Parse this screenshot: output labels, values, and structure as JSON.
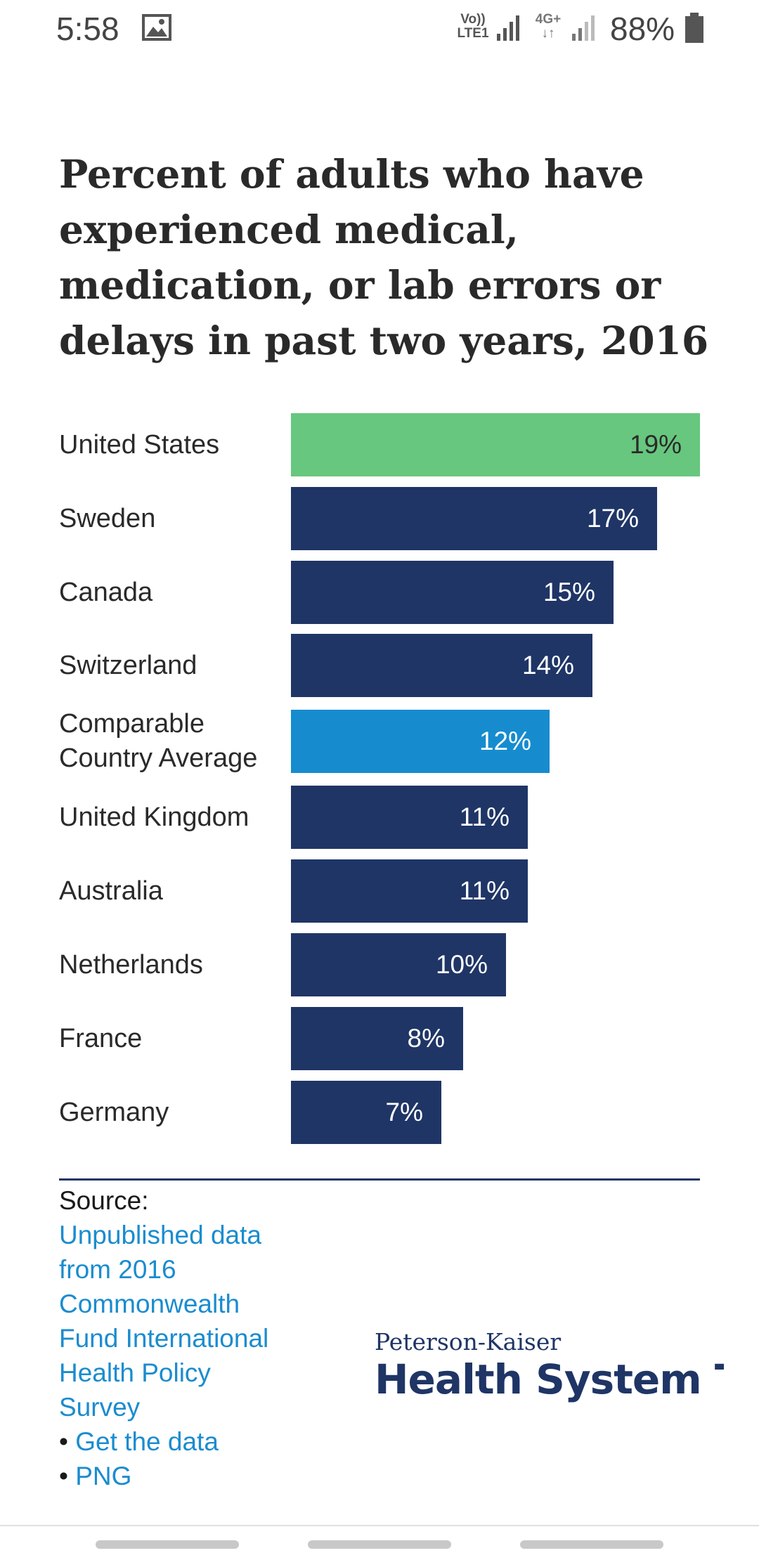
{
  "status_bar": {
    "time": "5:58",
    "volte_line1": "Vo))",
    "volte_line2": "LTE1",
    "network_line1": "4G+",
    "network_line2": "↓↑",
    "battery": "88%"
  },
  "chart_data": {
    "type": "bar",
    "title": "Percent of adults who have experienced medical, medication, or lab errors or delays in past two years, 2016",
    "categories": [
      "United States",
      "Sweden",
      "Canada",
      "Switzerland",
      "Comparable Country Average",
      "United Kingdom",
      "Australia",
      "Netherlands",
      "France",
      "Germany"
    ],
    "values": [
      19,
      17,
      15,
      14,
      12,
      11,
      11,
      10,
      8,
      7
    ],
    "value_labels": [
      "19%",
      "17%",
      "15%",
      "14%",
      "12%",
      "11%",
      "11%",
      "10%",
      "8%",
      "7%"
    ],
    "xlim": [
      0,
      19
    ],
    "colors": {
      "highlight": "#67c77e",
      "average": "#168ccf",
      "default": "#1f3566"
    },
    "highlight_index": 0,
    "average_index": 4
  },
  "source": {
    "label": "Source:",
    "link_text": "Unpublished data from 2016 Commonwealth Fund International Health Policy Survey",
    "links": [
      {
        "bullet": "•",
        "text": "Get the data"
      },
      {
        "bullet": "•",
        "text": "PNG"
      }
    ]
  },
  "logo": {
    "top_text": "Peterson-Kaiser",
    "main_text": "Health System Tracker"
  }
}
